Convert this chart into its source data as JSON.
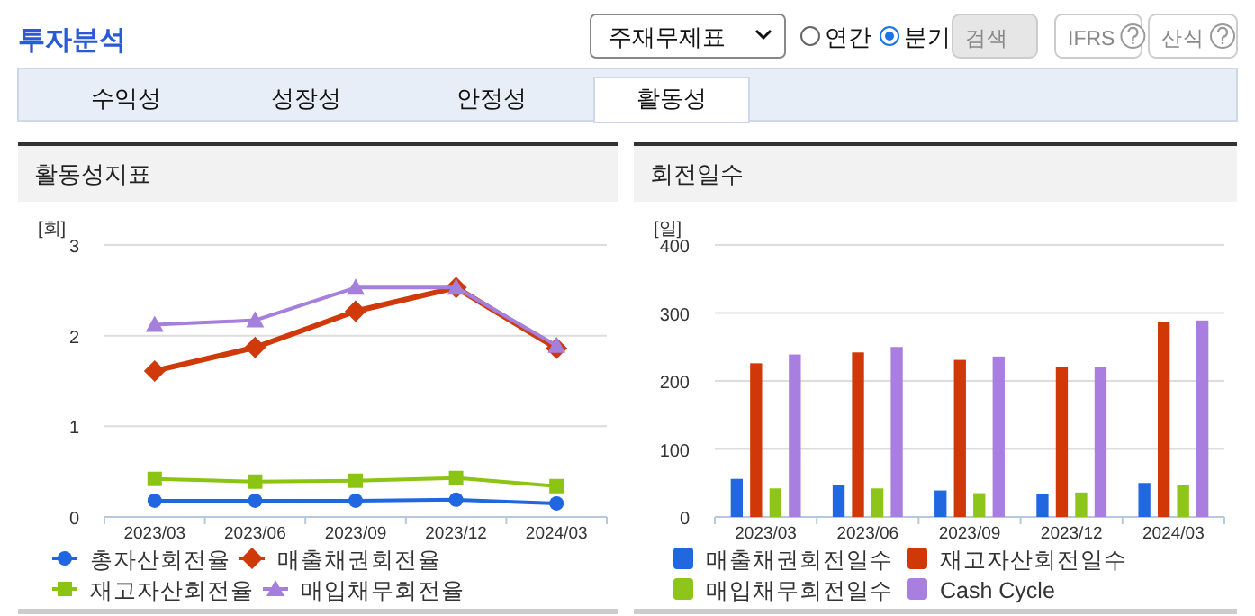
{
  "chart_data": [
    {
      "type": "other",
      "title": "투자분석",
      "annotations": [
        "주재무제표",
        "연간",
        "분기",
        "검색",
        "IFRS",
        "산식",
        "수익성",
        "성장성",
        "안정성",
        "활동성"
      ]
    },
    {
      "type": "line",
      "title": "활동성지표",
      "ylabel": "[회]",
      "categories": [
        "2023/03",
        "2023/06",
        "2023/09",
        "2023/12",
        "2024/03"
      ],
      "ylim": [
        0,
        3
      ],
      "yticks": [
        0,
        1,
        2,
        3
      ],
      "grid": "y",
      "legend": "bottom",
      "series": [
        {
          "name": "총자산회전율",
          "color": "#1f66e0",
          "marker": "circle",
          "values": [
            0.18,
            0.18,
            0.18,
            0.19,
            0.15
          ]
        },
        {
          "name": "매출채권회전율",
          "color": "#d03a0a",
          "marker": "diamond",
          "values": [
            1.61,
            1.87,
            2.27,
            2.53,
            1.86
          ]
        },
        {
          "name": "재고자산회전율",
          "color": "#8cc414",
          "marker": "square",
          "values": [
            0.42,
            0.39,
            0.4,
            0.43,
            0.34
          ]
        },
        {
          "name": "매입채무회전율",
          "color": "#a57fdc",
          "marker": "triangle",
          "values": [
            2.12,
            2.17,
            2.53,
            2.53,
            1.89
          ]
        }
      ]
    },
    {
      "type": "bar",
      "title": "회전일수",
      "ylabel": "[일]",
      "categories": [
        "2023/03",
        "2023/06",
        "2023/09",
        "2023/12",
        "2024/03"
      ],
      "ylim": [
        0,
        400
      ],
      "yticks": [
        0,
        100,
        200,
        300,
        400
      ],
      "grid": "y",
      "legend": "bottom",
      "series": [
        {
          "name": "매출채권회전일수",
          "color": "#2168e0",
          "values": [
            56,
            47,
            39,
            34,
            50
          ]
        },
        {
          "name": "재고자산회전일수",
          "color": "#d13808",
          "values": [
            226,
            242,
            231,
            220,
            287
          ]
        },
        {
          "name": "매입채무회전일수",
          "color": "#8dc51a",
          "values": [
            42,
            42,
            35,
            36,
            47
          ]
        },
        {
          "name": "Cash Cycle",
          "color": "#a87ee0",
          "values": [
            239,
            250,
            236,
            220,
            289
          ]
        }
      ]
    }
  ]
}
